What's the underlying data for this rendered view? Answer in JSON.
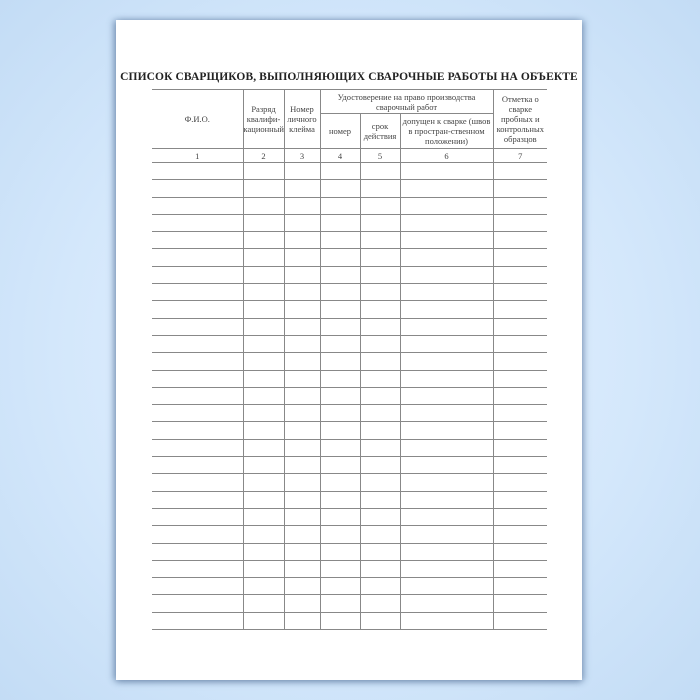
{
  "title": "СПИСОК СВАРЩИКОВ, ВЫПОЛНЯЮЩИХ СВАРОЧНЫЕ РАБОТЫ НА ОБЪЕКТЕ",
  "table": {
    "headers": {
      "fio": "Ф.И.О.",
      "rank": "Разряд квалифи-кационный",
      "stamp": "Номер личного клейма",
      "certificate": "Удостоверение на право производства сварочный работ",
      "number": "номер",
      "validity": "срок действия",
      "admitted": "допущен к сварке (швов в простран-ственном положении)",
      "mark": "Отметка о сварке пробных и контрольных образцов"
    },
    "column_numbers": [
      "1",
      "2",
      "3",
      "4",
      "5",
      "6",
      "7"
    ],
    "empty_rows": 27
  }
}
